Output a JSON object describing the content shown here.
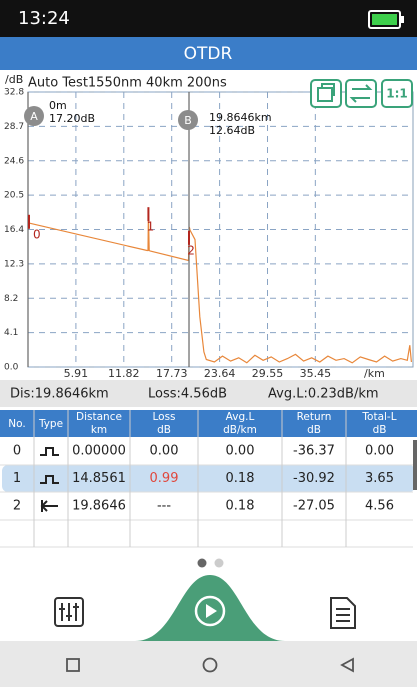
{
  "status_bar": {
    "time": "13:24"
  },
  "header": {
    "title": "OTDR"
  },
  "chart": {
    "y_unit": "/dB",
    "test_info": "Auto Test1550nm 40km 200ns",
    "x_unit": "/km",
    "scale_button": "1:1",
    "xlim": [
      0,
      47.5
    ],
    "ylim": [
      0,
      32.8
    ],
    "xticks": [
      5.91,
      11.82,
      17.73,
      23.64,
      29.55,
      35.45
    ],
    "yticks": [
      32.8,
      28.7,
      24.6,
      20.5,
      16.4,
      12.3,
      8.2,
      4.1,
      {
        "value": 0,
        "label": "0.0"
      }
    ],
    "grid": true,
    "trace": {
      "color": "#e8873a",
      "x": [
        0,
        14.7,
        14.8,
        14.86,
        14.95,
        15.05,
        19.8,
        19.9,
        20.0,
        20.6,
        21.2,
        21.7,
        22.0,
        23,
        24,
        25,
        26,
        27,
        28,
        29,
        30,
        31,
        32,
        33,
        34,
        35,
        36,
        37,
        38,
        39,
        40,
        41,
        42,
        43,
        44,
        45,
        46,
        46.8,
        47.1,
        47.3
      ],
      "y": [
        17.2,
        13.9,
        13.9,
        18.4,
        13.9,
        13.85,
        12.7,
        16.7,
        16.3,
        15.2,
        6.0,
        1.8,
        0.9,
        0.6,
        1.3,
        0.7,
        1.1,
        0.5,
        1.4,
        0.8,
        1.2,
        0.6,
        1.0,
        1.5,
        0.7,
        1.1,
        0.6,
        1.3,
        0.8,
        1.0,
        0.5,
        1.2,
        0.9,
        0.6,
        1.3,
        0.7,
        1.0,
        0.8,
        2.6,
        0.6
      ]
    },
    "events": [
      {
        "label": "0",
        "x": 0
      },
      {
        "label": "1",
        "x": 14.8561
      },
      {
        "label": "2",
        "x": 19.8646
      }
    ],
    "cursors": [
      {
        "name": "A",
        "x": 0,
        "distance": "0m",
        "level": "17.20dB"
      },
      {
        "name": "B",
        "x": 19.8646,
        "distance": "19.8646km",
        "level": "12.64dB"
      }
    ]
  },
  "summary": {
    "distance": "Dis:19.8646km",
    "loss": "Loss:4.56dB",
    "avg_loss": "Avg.L:0.23dB/km"
  },
  "table": {
    "columns": [
      [
        "No."
      ],
      [
        "Type"
      ],
      [
        "Distance",
        "km"
      ],
      [
        "Loss",
        "dB"
      ],
      [
        "Avg.L",
        "dB/km"
      ],
      [
        "Return",
        "dB"
      ],
      [
        "Total-L",
        "dB"
      ]
    ],
    "rows": [
      [
        "0",
        "0.00000",
        "0.00",
        "0.00",
        "-36.37",
        "0.00"
      ],
      [
        "1",
        "14.8561",
        "0.99",
        "0.18",
        "-30.92",
        "3.65"
      ],
      [
        "2",
        "19.8646",
        "---",
        "0.18",
        "-27.05",
        "4.56"
      ]
    ]
  }
}
